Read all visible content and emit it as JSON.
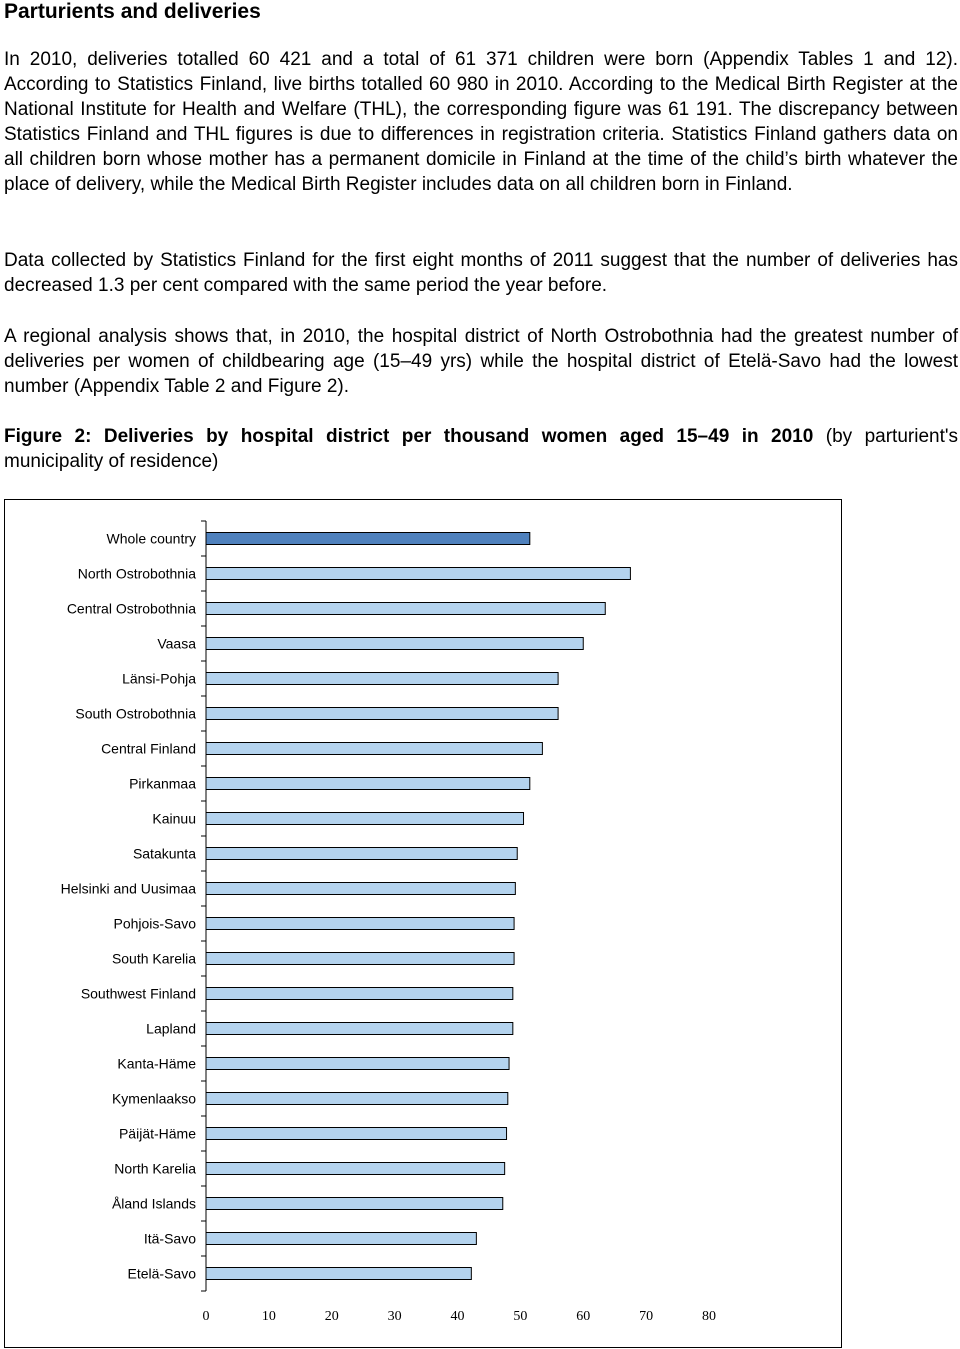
{
  "document": {
    "heading": "Parturients and deliveries",
    "paragraphs": [
      "In 2010, deliveries totalled 60 421 and a total of 61 371 children were born (Appendix Tables 1 and 12). According to Statistics Finland, live births totalled 60 980 in 2010. According to the Medical Birth Register at the National Institute for Health and Welfare (THL), the corresponding figure was 61 191. The discrepancy between Statistics Finland and THL figures is due to differences in registration criteria. Statistics Finland gathers data on all children born whose mother has a permanent domicile in Finland at the time of the child’s birth whatever the place of delivery, while the Medical Birth Register includes data on all children born in Finland.",
      "Data collected by Statistics Finland for the first eight months of 2011 suggest that the number of deliveries has decreased 1.3 per cent compared with the same period the year before.",
      "A regional analysis shows that, in 2010, the hospital district of North Ostrobothnia had the greatest number of deliveries per women of childbearing age (15–49 yrs) while the hospital district of Etelä-Savo had the lowest number (Appendix Table 2 and Figure 2)."
    ],
    "figure_caption_bold": "Figure 2: Deliveries by hospital district per thousand women aged 15–49 in 2010",
    "figure_caption_rest": " (by parturient's municipality of residence)"
  },
  "chart_data": {
    "type": "bar",
    "orientation": "horizontal",
    "title": "",
    "xlabel": "",
    "ylabel": "",
    "xlim": [
      0,
      80
    ],
    "x_ticks": [
      "0",
      "10",
      "20",
      "30",
      "40",
      "50",
      "60",
      "70",
      "80"
    ],
    "grid": false,
    "legend": "none",
    "categories": [
      "Whole country",
      "North Ostrobothnia",
      "Central Ostrobothnia",
      "Vaasa",
      "Länsi-Pohja",
      "South Ostrobothnia",
      "Central Finland",
      "Pirkanmaa",
      "Kainuu",
      "Satakunta",
      "Helsinki and Uusimaa",
      "Pohjois-Savo",
      "South Karelia",
      "Southwest Finland",
      "Lapland",
      "Kanta-Häme",
      "Kymenlaakso",
      "Päijät-Häme",
      "North Karelia",
      "Åland Islands",
      "Itä-Savo",
      "Etelä-Savo"
    ],
    "values": [
      51.5,
      67.5,
      63.5,
      60.0,
      56.0,
      56.0,
      53.5,
      51.5,
      50.5,
      49.5,
      49.2,
      49.0,
      49.0,
      48.8,
      48.8,
      48.2,
      48.0,
      47.8,
      47.5,
      47.2,
      43.0,
      42.2
    ],
    "colors": {
      "highlight": "#4f81bd",
      "bars": "#b4d3ee",
      "bar_outline": "#000000",
      "axis": "#000000"
    }
  }
}
